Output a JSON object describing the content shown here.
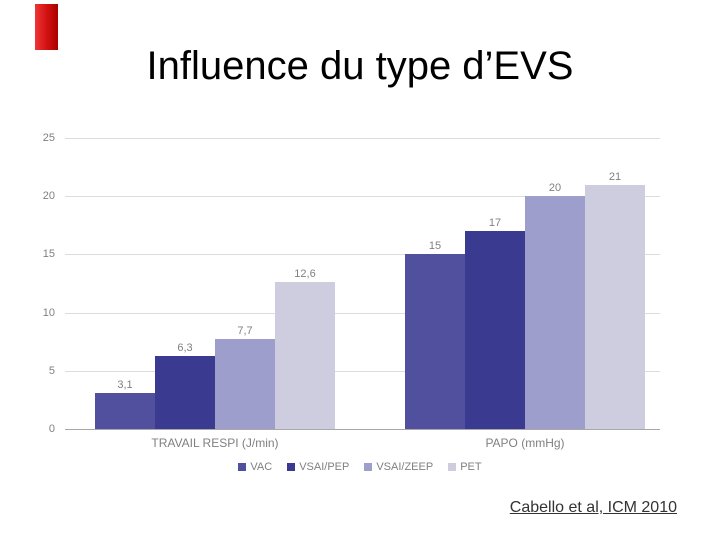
{
  "slide": {
    "title": "Influence du type d’EVS",
    "citation": "Cabello et al, ICM 2010"
  },
  "chart_data": {
    "type": "bar",
    "categories": [
      "TRAVAIL RESPI (J/min)",
      "PAPO (mmHg)"
    ],
    "series": [
      {
        "name": "VAC",
        "color": "#50509e",
        "values": [
          3.1,
          15
        ],
        "labels": [
          "3,1",
          "15"
        ]
      },
      {
        "name": "VSAI/PEP",
        "color": "#3a3a90",
        "values": [
          6.3,
          17
        ],
        "labels": [
          "6,3",
          "17"
        ]
      },
      {
        "name": "VSAI/ZEEP",
        "color": "#9e9ecd",
        "values": [
          7.7,
          20
        ],
        "labels": [
          "7,7",
          "20"
        ]
      },
      {
        "name": "PET",
        "color": "#cdcddf",
        "values": [
          12.6,
          21
        ],
        "labels": [
          "12,6",
          "21"
        ]
      }
    ],
    "ylim": [
      0,
      25
    ],
    "yticks": [
      0,
      5,
      10,
      15,
      20,
      25
    ],
    "grid": true,
    "legend_position": "bottom",
    "accent_color_red_shape": "#d01010"
  }
}
